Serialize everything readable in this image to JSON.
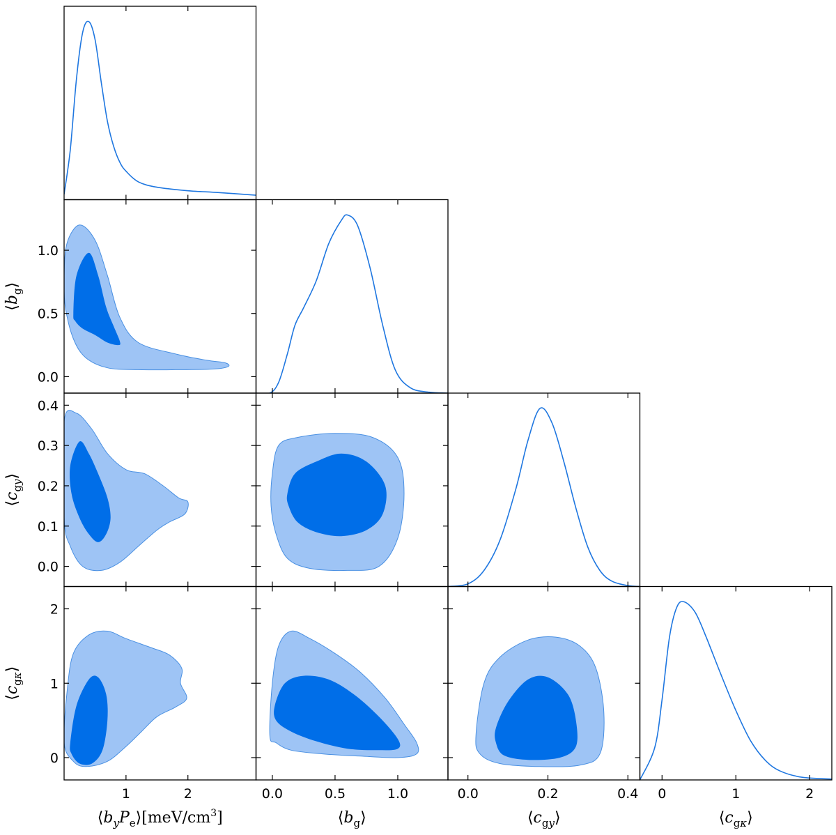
{
  "chart_data": {
    "type": "corner",
    "colors": {
      "line": "#1f77e0",
      "contour_68": "#006ee8",
      "contour_95": "#9ec4f5",
      "contour_edge": "#4a90e2"
    },
    "parameters": [
      {
        "id": "byPe",
        "label_html": "⟨<tspan font-style='italic'>b</tspan><tspan font-style='italic' font-size='15' dy='6'>y</tspan><tspan dy='-6' font-style='italic'>P</tspan><tspan font-size='15' dy='6'>e</tspan><tspan dy='-6'>⟩[meV/cm</tspan><tspan font-size='14' dy='-9'>3</tspan><tspan dy='9'>]</tspan>",
        "label_text": "⟨b_y P_e⟩[meV/cm3]",
        "range": [
          0.0,
          3.1
        ],
        "ticks": [
          1,
          2
        ],
        "tick_labels": [
          "1",
          "2"
        ]
      },
      {
        "id": "bg",
        "label_html": "⟨<tspan font-style='italic'>b</tspan><tspan font-size='15' dy='6'>g</tspan><tspan dy='-6'>⟩</tspan>",
        "label_text": "⟨b_g⟩",
        "range": [
          -0.13,
          1.4
        ],
        "ticks": [
          0.0,
          0.5,
          1.0
        ],
        "tick_labels": [
          "0.0",
          "0.5",
          "1.0"
        ]
      },
      {
        "id": "cgy",
        "label_html": "⟨<tspan font-style='italic'>c</tspan><tspan font-size='15' dy='6'>g</tspan><tspan font-size='15' font-style='italic'>y</tspan><tspan dy='-6'>⟩</tspan>",
        "label_text": "⟨c_gy⟩",
        "range": [
          -0.05,
          0.43
        ],
        "ticks": [
          0.0,
          0.1,
          0.2,
          0.3,
          0.4
        ],
        "tick_labels": [
          "0.0",
          "0.1",
          "0.2",
          "0.3",
          "0.4"
        ],
        "x_ticks": [
          0.0,
          0.2,
          0.4
        ],
        "x_tick_labels": [
          "0.0",
          "0.2",
          "0.4"
        ]
      },
      {
        "id": "cgk",
        "label_html": "⟨<tspan font-style='italic'>c</tspan><tspan font-size='15' dy='6'>g</tspan><tspan font-size='15' font-style='italic'>κ</tspan><tspan dy='-6'>⟩</tspan>",
        "label_text": "⟨c_gκ⟩",
        "range": [
          -0.3,
          2.3
        ],
        "ticks": [
          0,
          1,
          2
        ],
        "tick_labels": [
          "0",
          "1",
          "2"
        ]
      }
    ],
    "marginals": [
      {
        "param": "byPe",
        "points": [
          [
            0.0,
            0.03
          ],
          [
            0.1,
            0.28
          ],
          [
            0.2,
            0.68
          ],
          [
            0.3,
            0.94
          ],
          [
            0.4,
            1.0
          ],
          [
            0.5,
            0.9
          ],
          [
            0.6,
            0.66
          ],
          [
            0.7,
            0.44
          ],
          [
            0.8,
            0.3
          ],
          [
            0.9,
            0.21
          ],
          [
            1.0,
            0.16
          ],
          [
            1.2,
            0.1
          ],
          [
            1.5,
            0.07
          ],
          [
            2.0,
            0.05
          ],
          [
            2.5,
            0.04
          ],
          [
            3.1,
            0.025
          ]
        ]
      },
      {
        "param": "bg",
        "points": [
          [
            -0.13,
            0.0
          ],
          [
            -0.02,
            0.0
          ],
          [
            0.05,
            0.06
          ],
          [
            0.12,
            0.22
          ],
          [
            0.18,
            0.38
          ],
          [
            0.25,
            0.48
          ],
          [
            0.35,
            0.63
          ],
          [
            0.45,
            0.84
          ],
          [
            0.55,
            0.97
          ],
          [
            0.6,
            1.0
          ],
          [
            0.68,
            0.94
          ],
          [
            0.78,
            0.7
          ],
          [
            0.88,
            0.38
          ],
          [
            0.98,
            0.13
          ],
          [
            1.1,
            0.03
          ],
          [
            1.25,
            0.005
          ],
          [
            1.4,
            0.0
          ]
        ]
      },
      {
        "param": "cgy",
        "points": [
          [
            -0.05,
            0.0
          ],
          [
            0.0,
            0.015
          ],
          [
            0.04,
            0.09
          ],
          [
            0.08,
            0.26
          ],
          [
            0.12,
            0.55
          ],
          [
            0.15,
            0.82
          ],
          [
            0.18,
            1.0
          ],
          [
            0.21,
            0.92
          ],
          [
            0.24,
            0.7
          ],
          [
            0.27,
            0.44
          ],
          [
            0.3,
            0.22
          ],
          [
            0.33,
            0.09
          ],
          [
            0.36,
            0.03
          ],
          [
            0.4,
            0.005
          ],
          [
            0.43,
            0.0
          ]
        ]
      },
      {
        "param": "cgk",
        "points": [
          [
            -0.3,
            0.0
          ],
          [
            -0.1,
            0.18
          ],
          [
            0.0,
            0.45
          ],
          [
            0.1,
            0.8
          ],
          [
            0.2,
            0.97
          ],
          [
            0.3,
            1.0
          ],
          [
            0.45,
            0.94
          ],
          [
            0.6,
            0.8
          ],
          [
            0.8,
            0.59
          ],
          [
            1.0,
            0.39
          ],
          [
            1.2,
            0.22
          ],
          [
            1.4,
            0.11
          ],
          [
            1.6,
            0.05
          ],
          [
            1.9,
            0.015
          ],
          [
            2.3,
            0.005
          ]
        ]
      }
    ],
    "contours": [
      {
        "x": "byPe",
        "y": "bg",
        "c95": [
          [
            0.0,
            0.8
          ],
          [
            0.05,
            1.06
          ],
          [
            0.25,
            1.2
          ],
          [
            0.5,
            1.08
          ],
          [
            0.7,
            0.8
          ],
          [
            0.9,
            0.47
          ],
          [
            1.2,
            0.27
          ],
          [
            1.8,
            0.18
          ],
          [
            2.3,
            0.13
          ],
          [
            2.6,
            0.11
          ],
          [
            2.65,
            0.08
          ],
          [
            2.4,
            0.06
          ],
          [
            1.8,
            0.055
          ],
          [
            1.2,
            0.055
          ],
          [
            0.7,
            0.07
          ],
          [
            0.35,
            0.15
          ],
          [
            0.15,
            0.3
          ],
          [
            0.02,
            0.55
          ]
        ],
        "c68": [
          [
            0.15,
            0.5
          ],
          [
            0.2,
            0.8
          ],
          [
            0.4,
            0.98
          ],
          [
            0.55,
            0.8
          ],
          [
            0.68,
            0.55
          ],
          [
            0.8,
            0.4
          ],
          [
            0.9,
            0.28
          ],
          [
            0.88,
            0.25
          ],
          [
            0.7,
            0.27
          ],
          [
            0.5,
            0.33
          ],
          [
            0.3,
            0.38
          ],
          [
            0.18,
            0.44
          ]
        ]
      },
      {
        "x": "byPe",
        "y": "cgy",
        "c95": [
          [
            0.0,
            0.36
          ],
          [
            0.2,
            0.38
          ],
          [
            0.45,
            0.34
          ],
          [
            0.7,
            0.28
          ],
          [
            1.0,
            0.24
          ],
          [
            1.3,
            0.23
          ],
          [
            1.6,
            0.2
          ],
          [
            1.85,
            0.17
          ],
          [
            2.0,
            0.16
          ],
          [
            1.95,
            0.13
          ],
          [
            1.7,
            0.11
          ],
          [
            1.5,
            0.09
          ],
          [
            1.2,
            0.05
          ],
          [
            0.9,
            0.01
          ],
          [
            0.6,
            -0.01
          ],
          [
            0.3,
            0.0
          ],
          [
            0.1,
            0.05
          ],
          [
            0.0,
            0.12
          ]
        ],
        "c68": [
          [
            0.1,
            0.25
          ],
          [
            0.25,
            0.31
          ],
          [
            0.4,
            0.28
          ],
          [
            0.55,
            0.23
          ],
          [
            0.7,
            0.17
          ],
          [
            0.75,
            0.12
          ],
          [
            0.68,
            0.08
          ],
          [
            0.55,
            0.06
          ],
          [
            0.4,
            0.08
          ],
          [
            0.25,
            0.12
          ],
          [
            0.12,
            0.18
          ]
        ]
      },
      {
        "x": "bg",
        "y": "cgy",
        "c95": [
          [
            0.0,
            0.23
          ],
          [
            0.05,
            0.3
          ],
          [
            0.2,
            0.32
          ],
          [
            0.5,
            0.33
          ],
          [
            0.8,
            0.32
          ],
          [
            1.0,
            0.27
          ],
          [
            1.05,
            0.18
          ],
          [
            1.0,
            0.07
          ],
          [
            0.85,
            0.0
          ],
          [
            0.6,
            -0.01
          ],
          [
            0.3,
            -0.005
          ],
          [
            0.12,
            0.02
          ],
          [
            0.03,
            0.08
          ],
          [
            -0.01,
            0.15
          ]
        ],
        "c68": [
          [
            0.12,
            0.18
          ],
          [
            0.18,
            0.23
          ],
          [
            0.35,
            0.26
          ],
          [
            0.55,
            0.28
          ],
          [
            0.75,
            0.26
          ],
          [
            0.9,
            0.2
          ],
          [
            0.88,
            0.13
          ],
          [
            0.75,
            0.09
          ],
          [
            0.55,
            0.075
          ],
          [
            0.35,
            0.085
          ],
          [
            0.2,
            0.11
          ],
          [
            0.13,
            0.15
          ]
        ]
      },
      {
        "x": "byPe",
        "y": "cgk",
        "c95": [
          [
            0.0,
            0.2
          ],
          [
            0.05,
            0.9
          ],
          [
            0.15,
            1.4
          ],
          [
            0.4,
            1.65
          ],
          [
            0.7,
            1.7
          ],
          [
            1.0,
            1.6
          ],
          [
            1.4,
            1.48
          ],
          [
            1.7,
            1.38
          ],
          [
            1.9,
            1.2
          ],
          [
            1.88,
            1.0
          ],
          [
            1.98,
            0.8
          ],
          [
            1.8,
            0.68
          ],
          [
            1.5,
            0.55
          ],
          [
            1.25,
            0.35
          ],
          [
            1.0,
            0.15
          ],
          [
            0.7,
            -0.05
          ],
          [
            0.35,
            -0.12
          ],
          [
            0.15,
            -0.05
          ]
        ],
        "c68": [
          [
            0.1,
            0.2
          ],
          [
            0.2,
            0.7
          ],
          [
            0.4,
            1.05
          ],
          [
            0.55,
            1.08
          ],
          [
            0.68,
            0.85
          ],
          [
            0.7,
            0.5
          ],
          [
            0.62,
            0.1
          ],
          [
            0.45,
            -0.08
          ],
          [
            0.25,
            -0.08
          ],
          [
            0.12,
            0.05
          ]
        ]
      },
      {
        "x": "bg",
        "y": "cgk",
        "c95": [
          [
            -0.02,
            0.3
          ],
          [
            0.0,
            1.0
          ],
          [
            0.05,
            1.5
          ],
          [
            0.15,
            1.7
          ],
          [
            0.3,
            1.6
          ],
          [
            0.5,
            1.4
          ],
          [
            0.7,
            1.15
          ],
          [
            0.9,
            0.8
          ],
          [
            1.05,
            0.45
          ],
          [
            1.15,
            0.2
          ],
          [
            1.15,
            0.05
          ],
          [
            1.0,
            0.0
          ],
          [
            0.7,
            0.02
          ],
          [
            0.4,
            0.05
          ],
          [
            0.15,
            0.1
          ],
          [
            0.03,
            0.2
          ]
        ],
        "c68": [
          [
            0.02,
            0.7
          ],
          [
            0.1,
            1.0
          ],
          [
            0.25,
            1.1
          ],
          [
            0.45,
            1.05
          ],
          [
            0.65,
            0.85
          ],
          [
            0.85,
            0.55
          ],
          [
            1.0,
            0.25
          ],
          [
            1.0,
            0.12
          ],
          [
            0.85,
            0.1
          ],
          [
            0.6,
            0.12
          ],
          [
            0.35,
            0.22
          ],
          [
            0.15,
            0.35
          ],
          [
            0.03,
            0.5
          ]
        ]
      },
      {
        "x": "cgy",
        "y": "cgk",
        "c95": [
          [
            0.02,
            0.3
          ],
          [
            0.04,
            1.0
          ],
          [
            0.08,
            1.35
          ],
          [
            0.15,
            1.58
          ],
          [
            0.22,
            1.62
          ],
          [
            0.28,
            1.5
          ],
          [
            0.32,
            1.2
          ],
          [
            0.34,
            0.6
          ],
          [
            0.33,
            0.05
          ],
          [
            0.28,
            -0.1
          ],
          [
            0.18,
            -0.12
          ],
          [
            0.08,
            -0.08
          ],
          [
            0.03,
            0.05
          ]
        ],
        "c68": [
          [
            0.07,
            0.4
          ],
          [
            0.1,
            0.75
          ],
          [
            0.15,
            1.05
          ],
          [
            0.2,
            1.08
          ],
          [
            0.25,
            0.85
          ],
          [
            0.27,
            0.5
          ],
          [
            0.27,
            0.15
          ],
          [
            0.23,
            0.0
          ],
          [
            0.15,
            -0.03
          ],
          [
            0.09,
            0.03
          ],
          [
            0.07,
            0.2
          ]
        ]
      }
    ]
  }
}
